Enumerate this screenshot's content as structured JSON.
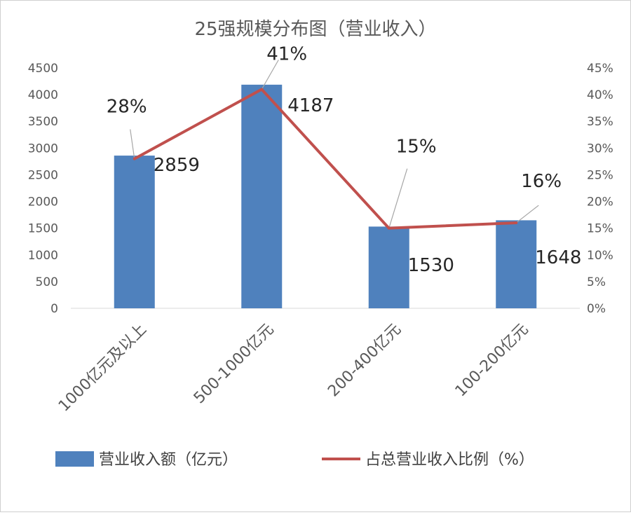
{
  "chart_data": {
    "type": "bar",
    "title": "25强规模分布图（营业收入）",
    "categories": [
      "1000亿元及以上",
      "500-1000亿元",
      "200-400亿元",
      "100-200亿元"
    ],
    "series": [
      {
        "name": "营业收入额（亿元）",
        "type": "bar",
        "axis": "left",
        "values": [
          2859,
          4187,
          1530,
          1648
        ],
        "labels": [
          "2859",
          "4187",
          "1530",
          "1648"
        ],
        "color": "#4f81bd"
      },
      {
        "name": "占总营业收入比例（%）",
        "type": "line",
        "axis": "right",
        "values": [
          28,
          41,
          15,
          16
        ],
        "labels": [
          "28%",
          "41%",
          "15%",
          "16%"
        ],
        "color": "#c0504d"
      }
    ],
    "y_left": {
      "ylim": [
        0,
        4500
      ],
      "ticks": [
        "0",
        "500",
        "1000",
        "1500",
        "2000",
        "2500",
        "3000",
        "3500",
        "4000",
        "4500"
      ]
    },
    "y_right": {
      "ylim": [
        0,
        45
      ],
      "ticks": [
        "0%",
        "5%",
        "10%",
        "15%",
        "20%",
        "25%",
        "30%",
        "35%",
        "40%",
        "45%"
      ]
    },
    "legend_position": "bottom",
    "grid": false
  }
}
